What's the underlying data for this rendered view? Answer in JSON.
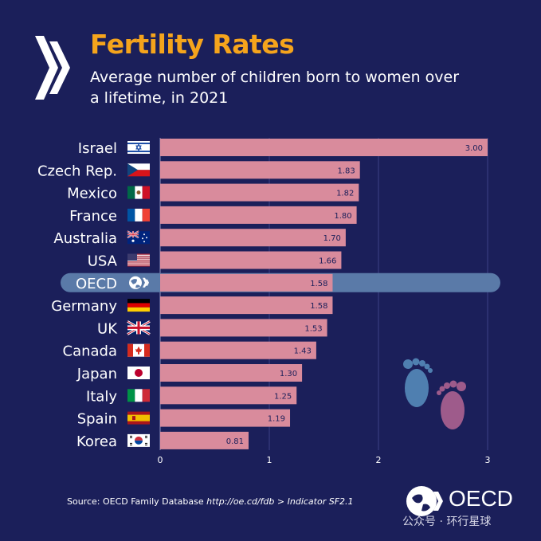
{
  "header": {
    "title": "Fertility Rates",
    "subtitle": "Average number of children born to women over a lifetime, in 2021"
  },
  "footer": {
    "source_prefix": "Source: OECD Family Database ",
    "source_url": "http://oe.cd/fdb",
    "source_sep": "  > ",
    "source_indicator": "Indicator SF2.1",
    "logo_text": "OECD",
    "watermark": "公众号 · 环行星球"
  },
  "colors": {
    "background": "#1b1f5a",
    "bar": "#d98b9c",
    "highlight": "#5a7aa8",
    "title": "#f5a41c",
    "foot_left": "#4f7fb0",
    "foot_right": "#9e5b8b"
  },
  "chart_data": {
    "type": "bar",
    "orientation": "horizontal",
    "title": "Fertility Rates",
    "subtitle": "Average number of children born to women over a lifetime, in 2021",
    "categories": [
      "Israel",
      "Czech Rep.",
      "Mexico",
      "France",
      "Australia",
      "USA",
      "OECD",
      "Germany",
      "UK",
      "Canada",
      "Japan",
      "Italy",
      "Spain",
      "Korea"
    ],
    "values": [
      3.0,
      1.83,
      1.82,
      1.8,
      1.7,
      1.66,
      1.58,
      1.58,
      1.53,
      1.43,
      1.3,
      1.25,
      1.19,
      0.81
    ],
    "value_labels": [
      "3.00",
      "1.83",
      "1.82",
      "1.80",
      "1.70",
      "1.66",
      "1.58",
      "1.58",
      "1.53",
      "1.43",
      "1.30",
      "1.25",
      "1.19",
      "0.81"
    ],
    "flags": [
      "israel-flag",
      "czech-flag",
      "mexico-flag",
      "france-flag",
      "australia-flag",
      "usa-flag",
      "oecd-logo",
      "germany-flag",
      "uk-flag",
      "canada-flag",
      "japan-flag",
      "italy-flag",
      "spain-flag",
      "korea-flag"
    ],
    "highlight": "OECD",
    "xlim": [
      0,
      3
    ],
    "xticks": [
      0,
      1,
      2,
      3
    ],
    "xtick_labels": [
      "0",
      "1",
      "2",
      "3"
    ],
    "grid": true,
    "xlabel": "",
    "ylabel": ""
  }
}
